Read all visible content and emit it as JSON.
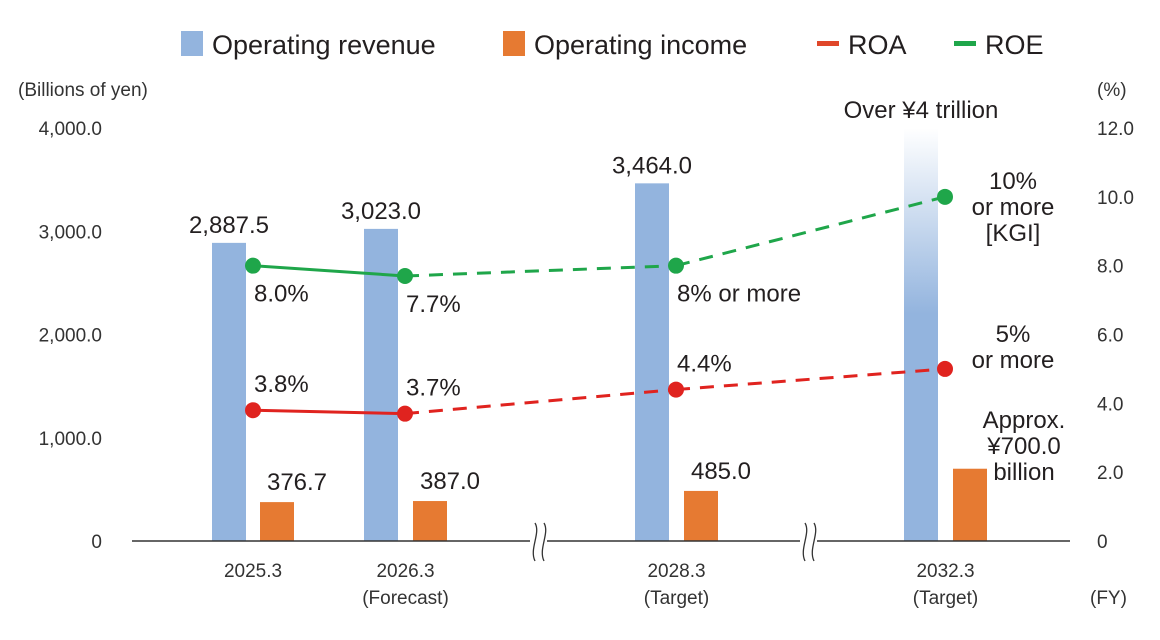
{
  "chart_data": {
    "type": "bar",
    "title": "",
    "legend": {
      "placement": "top",
      "entries": [
        {
          "label": "Operating revenue",
          "kind": "bar",
          "color": "#93b4de"
        },
        {
          "label": "Operating income",
          "kind": "bar",
          "color": "#e67a32"
        },
        {
          "label": "ROA",
          "kind": "line",
          "color": "#e0472a"
        },
        {
          "label": "ROE",
          "kind": "line",
          "color": "#1fa64a"
        }
      ]
    },
    "left_axis": {
      "unit_label": "(Billions of yen)",
      "ylim": [
        0,
        4000
      ],
      "ticks": [
        0,
        1000,
        2000,
        3000,
        4000
      ],
      "tick_labels": [
        "0",
        "1,000.0",
        "2,000.0",
        "3,000.0",
        "4,000.0"
      ]
    },
    "right_axis": {
      "unit_label": "(%)",
      "ylim": [
        0,
        12
      ],
      "ticks": [
        0,
        2,
        4,
        6,
        8,
        10,
        12
      ],
      "tick_labels": [
        "0",
        "2.0",
        "4.0",
        "6.0",
        "8.0",
        "10.0",
        "12.0"
      ]
    },
    "x_unit_label": "(FY)",
    "categories": [
      {
        "label": "2025.3",
        "sublabel": ""
      },
      {
        "label": "2026.3",
        "sublabel": "(Forecast)"
      },
      {
        "label": "2028.3",
        "sublabel": "(Target)"
      },
      {
        "label": "2032.3",
        "sublabel": "(Target)"
      }
    ],
    "axis_breaks_after": [
      1,
      2
    ],
    "series": [
      {
        "name": "Operating revenue",
        "type": "bar",
        "axis": "left",
        "color": "#93b4de",
        "values": [
          2887.5,
          3023.0,
          3464.0,
          4000
        ],
        "labels": [
          "2,887.5",
          "3,023.0",
          "3,464.0",
          "Over ¥4 trillion"
        ],
        "faded_top": [
          false,
          false,
          false,
          true
        ]
      },
      {
        "name": "Operating income",
        "type": "bar",
        "axis": "left",
        "color": "#e67a32",
        "values": [
          376.7,
          387.0,
          485.0,
          700.0
        ],
        "labels": [
          "376.7",
          "387.0",
          "485.0",
          "Approx.|¥700.0|billion"
        ]
      },
      {
        "name": "ROE",
        "type": "line",
        "axis": "right",
        "color": "#1fa64a",
        "values": [
          8.0,
          7.7,
          8.0,
          10.0
        ],
        "labels": [
          "8.0%",
          "7.7%",
          "8% or more",
          "10%|or more|[KGI]"
        ],
        "dashed_from_index": 1
      },
      {
        "name": "ROA",
        "type": "line",
        "axis": "right",
        "color": "#e0231f",
        "values": [
          3.8,
          3.7,
          4.4,
          5.0
        ],
        "labels": [
          "3.8%",
          "3.7%",
          "4.4%",
          "5%|or more"
        ],
        "dashed_from_index": 1
      }
    ],
    "grid": false
  }
}
